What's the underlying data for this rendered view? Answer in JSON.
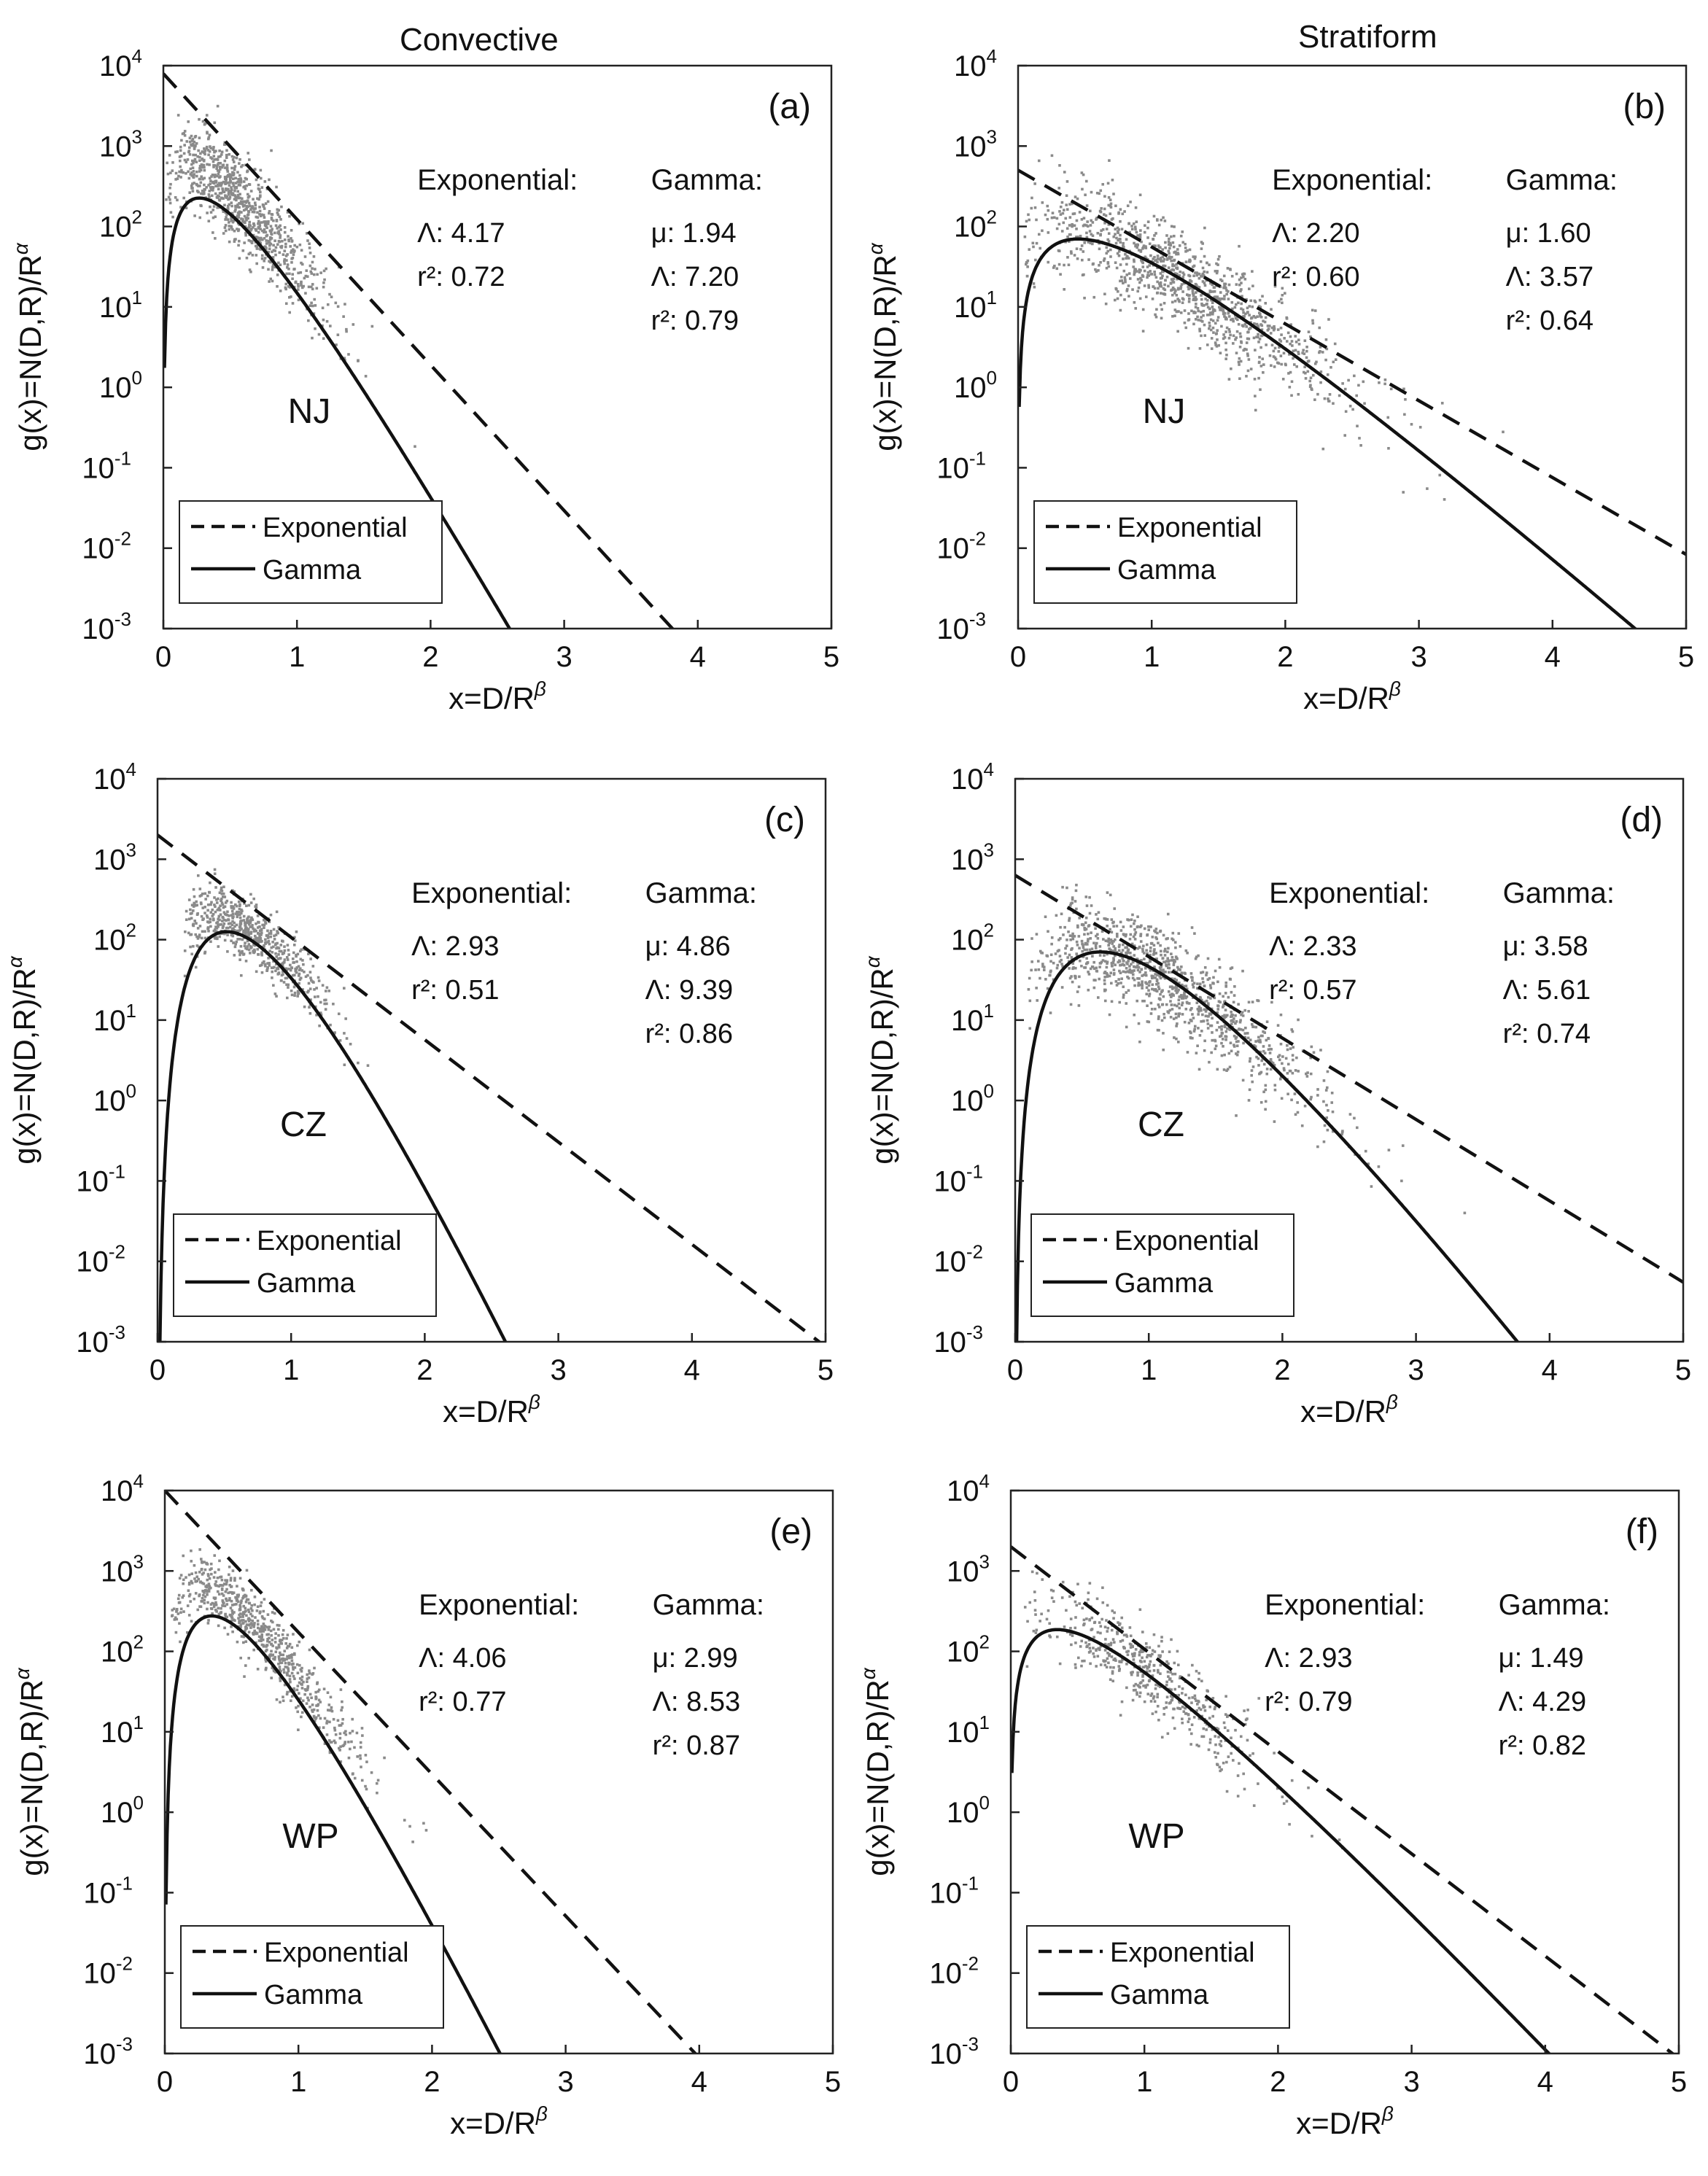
{
  "figure": {
    "column_titles": [
      "Convective",
      "Stratiform"
    ]
  },
  "chart_data": [
    {
      "panel": "(a)",
      "type": "scatter",
      "column": "Convective",
      "region": "NJ",
      "xlabel": "x=D/R",
      "xlabel_sup": "β",
      "ylabel": "g(x)=N(D,R)/R",
      "ylabel_sup": "α",
      "xlim": [
        0,
        5
      ],
      "ylim_log10": [
        -3,
        4
      ],
      "xticks": [
        "0",
        "1",
        "2",
        "3",
        "4",
        "5"
      ],
      "yticks": [
        {
          "base": "10",
          "exp": "4"
        },
        {
          "base": "10",
          "exp": "3"
        },
        {
          "base": "10",
          "exp": "2"
        },
        {
          "base": "10",
          "exp": "1"
        },
        {
          "base": "10",
          "exp": "0"
        },
        {
          "base": "10",
          "exp": "-1"
        },
        {
          "base": "10",
          "exp": "-2"
        },
        {
          "base": "10",
          "exp": "-3"
        }
      ],
      "legend": {
        "placement": "bottom-left",
        "entries": [
          {
            "label": "Exponential",
            "style": "dashed"
          },
          {
            "label": "Gamma",
            "style": "solid"
          }
        ]
      },
      "exp_header": "Exponential:",
      "gamma_header": "Gamma:",
      "exp_stats": [
        {
          "key": "Λ",
          "text": "Λ: 4.17"
        },
        {
          "key": "r2",
          "text": "r²: 0.72"
        }
      ],
      "gamma_stats": [
        {
          "key": "μ",
          "text": "μ: 1.94"
        },
        {
          "key": "Λ",
          "text": "Λ: 7.20"
        },
        {
          "key": "r2",
          "text": "r²: 0.79"
        }
      ],
      "exponential": {
        "N0": 7943,
        "lambda": 4.17
      },
      "gamma": {
        "N0": 20000,
        "mu": 1.94,
        "lambda": 7.2
      },
      "scatter": {
        "n": 900,
        "xmin": 0.02,
        "xmax": 1.9,
        "center": 0.55,
        "spread": 0.38,
        "scatter_log10": 0.28,
        "seed": 11
      }
    },
    {
      "panel": "(b)",
      "type": "scatter",
      "column": "Stratiform",
      "region": "NJ",
      "xlabel": "x=D/R",
      "xlabel_sup": "β",
      "ylabel": "g(x)=N(D,R)/R",
      "ylabel_sup": "α",
      "xlim": [
        0,
        5
      ],
      "ylim_log10": [
        -3,
        4
      ],
      "xticks": [
        "0",
        "1",
        "2",
        "3",
        "4",
        "5"
      ],
      "yticks": [
        {
          "base": "10",
          "exp": "4"
        },
        {
          "base": "10",
          "exp": "3"
        },
        {
          "base": "10",
          "exp": "2"
        },
        {
          "base": "10",
          "exp": "1"
        },
        {
          "base": "10",
          "exp": "0"
        },
        {
          "base": "10",
          "exp": "-1"
        },
        {
          "base": "10",
          "exp": "-2"
        },
        {
          "base": "10",
          "exp": "-3"
        }
      ],
      "legend": {
        "placement": "bottom-left",
        "entries": [
          {
            "label": "Exponential",
            "style": "dashed"
          },
          {
            "label": "Gamma",
            "style": "solid"
          }
        ]
      },
      "exp_header": "Exponential:",
      "gamma_header": "Gamma:",
      "exp_stats": [
        {
          "key": "Λ",
          "text": "Λ: 2.20"
        },
        {
          "key": "r2",
          "text": "r²: 0.60"
        }
      ],
      "gamma_stats": [
        {
          "key": "μ",
          "text": "μ: 1.60"
        },
        {
          "key": "Λ",
          "text": "Λ: 3.57"
        },
        {
          "key": "r2",
          "text": "r²: 0.64"
        }
      ],
      "exponential": {
        "N0": 501,
        "lambda": 2.2
      },
      "gamma": {
        "N0": 1250,
        "mu": 1.6,
        "lambda": 3.57
      },
      "scatter": {
        "n": 1100,
        "xmin": 0.05,
        "xmax": 3.7,
        "center": 1.2,
        "spread": 0.75,
        "scatter_log10": 0.32,
        "seed": 23
      }
    },
    {
      "panel": "(c)",
      "type": "scatter",
      "column": "Convective",
      "region": "CZ",
      "xlabel": "x=D/R",
      "xlabel_sup": "β",
      "ylabel": "g(x)=N(D,R)/R",
      "ylabel_sup": "α",
      "xlim": [
        0,
        5
      ],
      "ylim_log10": [
        -3,
        4
      ],
      "xticks": [
        "0",
        "1",
        "2",
        "3",
        "4",
        "5"
      ],
      "yticks": [
        {
          "base": "10",
          "exp": "4"
        },
        {
          "base": "10",
          "exp": "3"
        },
        {
          "base": "10",
          "exp": "2"
        },
        {
          "base": "10",
          "exp": "1"
        },
        {
          "base": "10",
          "exp": "0"
        },
        {
          "base": "10",
          "exp": "-1"
        },
        {
          "base": "10",
          "exp": "-2"
        },
        {
          "base": "10",
          "exp": "-3"
        }
      ],
      "legend": {
        "placement": "bottom-left",
        "entries": [
          {
            "label": "Exponential",
            "style": "dashed"
          },
          {
            "label": "Gamma",
            "style": "solid"
          }
        ]
      },
      "exp_header": "Exponential:",
      "gamma_header": "Gamma:",
      "exp_stats": [
        {
          "key": "Λ",
          "text": "Λ: 2.93"
        },
        {
          "key": "r2",
          "text": "r²: 0.51"
        }
      ],
      "gamma_stats": [
        {
          "key": "μ",
          "text": "μ: 4.86"
        },
        {
          "key": "Λ",
          "text": "Λ: 9.39"
        },
        {
          "key": "r2",
          "text": "r²: 0.86"
        }
      ],
      "exponential": {
        "N0": 2000,
        "lambda": 2.93
      },
      "gamma": {
        "N0": 398000,
        "mu": 4.86,
        "lambda": 9.39
      },
      "scatter": {
        "n": 650,
        "xmin": 0.2,
        "xmax": 1.9,
        "center": 0.7,
        "spread": 0.35,
        "scatter_log10": 0.2,
        "seed": 37
      }
    },
    {
      "panel": "(d)",
      "type": "scatter",
      "column": "Stratiform",
      "region": "CZ",
      "xlabel": "x=D/R",
      "xlabel_sup": "β",
      "ylabel": "g(x)=N(D,R)/R",
      "ylabel_sup": "α",
      "xlim": [
        0,
        5
      ],
      "ylim_log10": [
        -3,
        4
      ],
      "xticks": [
        "0",
        "1",
        "2",
        "3",
        "4",
        "5"
      ],
      "yticks": [
        {
          "base": "10",
          "exp": "4"
        },
        {
          "base": "10",
          "exp": "3"
        },
        {
          "base": "10",
          "exp": "2"
        },
        {
          "base": "10",
          "exp": "1"
        },
        {
          "base": "10",
          "exp": "0"
        },
        {
          "base": "10",
          "exp": "-1"
        },
        {
          "base": "10",
          "exp": "-2"
        },
        {
          "base": "10",
          "exp": "-3"
        }
      ],
      "legend": {
        "placement": "bottom-left",
        "entries": [
          {
            "label": "Exponential",
            "style": "dashed"
          },
          {
            "label": "Gamma",
            "style": "solid"
          }
        ]
      },
      "exp_header": "Exponential:",
      "gamma_header": "Gamma:",
      "exp_stats": [
        {
          "key": "Λ",
          "text": "Λ: 2.33"
        },
        {
          "key": "r2",
          "text": "r²: 0.57"
        }
      ],
      "gamma_stats": [
        {
          "key": "μ",
          "text": "μ: 3.58"
        },
        {
          "key": "Λ",
          "text": "Λ: 5.61"
        },
        {
          "key": "r2",
          "text": "r²: 0.74"
        }
      ],
      "exponential": {
        "N0": 631,
        "lambda": 2.33
      },
      "gamma": {
        "N0": 12600,
        "mu": 3.58,
        "lambda": 5.61
      },
      "scatter": {
        "n": 1100,
        "xmin": 0.1,
        "xmax": 3.5,
        "center": 1.1,
        "spread": 0.65,
        "scatter_log10": 0.3,
        "seed": 51
      }
    },
    {
      "panel": "(e)",
      "type": "scatter",
      "column": "Convective",
      "region": "WP",
      "xlabel": "x=D/R",
      "xlabel_sup": "β",
      "ylabel": "g(x)=N(D,R)/R",
      "ylabel_sup": "α",
      "xlim": [
        0,
        5
      ],
      "ylim_log10": [
        -3,
        4
      ],
      "xticks": [
        "0",
        "1",
        "2",
        "3",
        "4",
        "5"
      ],
      "yticks": [
        {
          "base": "10",
          "exp": "4"
        },
        {
          "base": "10",
          "exp": "3"
        },
        {
          "base": "10",
          "exp": "2"
        },
        {
          "base": "10",
          "exp": "1"
        },
        {
          "base": "10",
          "exp": "0"
        },
        {
          "base": "10",
          "exp": "-1"
        },
        {
          "base": "10",
          "exp": "-2"
        },
        {
          "base": "10",
          "exp": "-3"
        }
      ],
      "legend": {
        "placement": "bottom-left",
        "entries": [
          {
            "label": "Exponential",
            "style": "dashed"
          },
          {
            "label": "Gamma",
            "style": "solid"
          }
        ]
      },
      "exp_header": "Exponential:",
      "gamma_header": "Gamma:",
      "exp_stats": [
        {
          "key": "Λ",
          "text": "Λ: 4.06"
        },
        {
          "key": "r2",
          "text": "r²: 0.77"
        }
      ],
      "gamma_stats": [
        {
          "key": "μ",
          "text": "μ: 2.99"
        },
        {
          "key": "Λ",
          "text": "Λ: 8.53"
        },
        {
          "key": "r2",
          "text": "r²: 0.87"
        }
      ],
      "exponential": {
        "N0": 10000,
        "lambda": 4.06
      },
      "gamma": {
        "N0": 126000,
        "mu": 2.99,
        "lambda": 8.53
      },
      "scatter": {
        "n": 700,
        "xmin": 0.05,
        "xmax": 2.5,
        "center": 0.65,
        "spread": 0.45,
        "scatter_log10": 0.2,
        "seed": 67
      }
    },
    {
      "panel": "(f)",
      "type": "scatter",
      "column": "Stratiform",
      "region": "WP",
      "xlabel": "x=D/R",
      "xlabel_sup": "β",
      "ylabel": "g(x)=N(D,R)/R",
      "ylabel_sup": "α",
      "xlim": [
        0,
        5
      ],
      "ylim_log10": [
        -3,
        4
      ],
      "xticks": [
        "0",
        "1",
        "2",
        "3",
        "4",
        "5"
      ],
      "yticks": [
        {
          "base": "10",
          "exp": "4"
        },
        {
          "base": "10",
          "exp": "3"
        },
        {
          "base": "10",
          "exp": "2"
        },
        {
          "base": "10",
          "exp": "1"
        },
        {
          "base": "10",
          "exp": "0"
        },
        {
          "base": "10",
          "exp": "-1"
        },
        {
          "base": "10",
          "exp": "-2"
        },
        {
          "base": "10",
          "exp": "-3"
        }
      ],
      "legend": {
        "placement": "bottom-left",
        "entries": [
          {
            "label": "Exponential",
            "style": "dashed"
          },
          {
            "label": "Gamma",
            "style": "solid"
          }
        ]
      },
      "exp_header": "Exponential:",
      "gamma_header": "Gamma:",
      "exp_stats": [
        {
          "key": "Λ",
          "text": "Λ: 2.93"
        },
        {
          "key": "r2",
          "text": "r²: 0.79"
        }
      ],
      "gamma_stats": [
        {
          "key": "μ",
          "text": "μ: 1.49"
        },
        {
          "key": "Λ",
          "text": "Λ: 4.29"
        },
        {
          "key": "r2",
          "text": "r²: 0.82"
        }
      ],
      "exponential": {
        "N0": 2000,
        "lambda": 2.93
      },
      "gamma": {
        "N0": 4000,
        "mu": 1.49,
        "lambda": 4.29
      },
      "scatter": {
        "n": 500,
        "xmin": 0.1,
        "xmax": 2.7,
        "center": 1.0,
        "spread": 0.55,
        "scatter_log10": 0.25,
        "seed": 83
      }
    }
  ]
}
